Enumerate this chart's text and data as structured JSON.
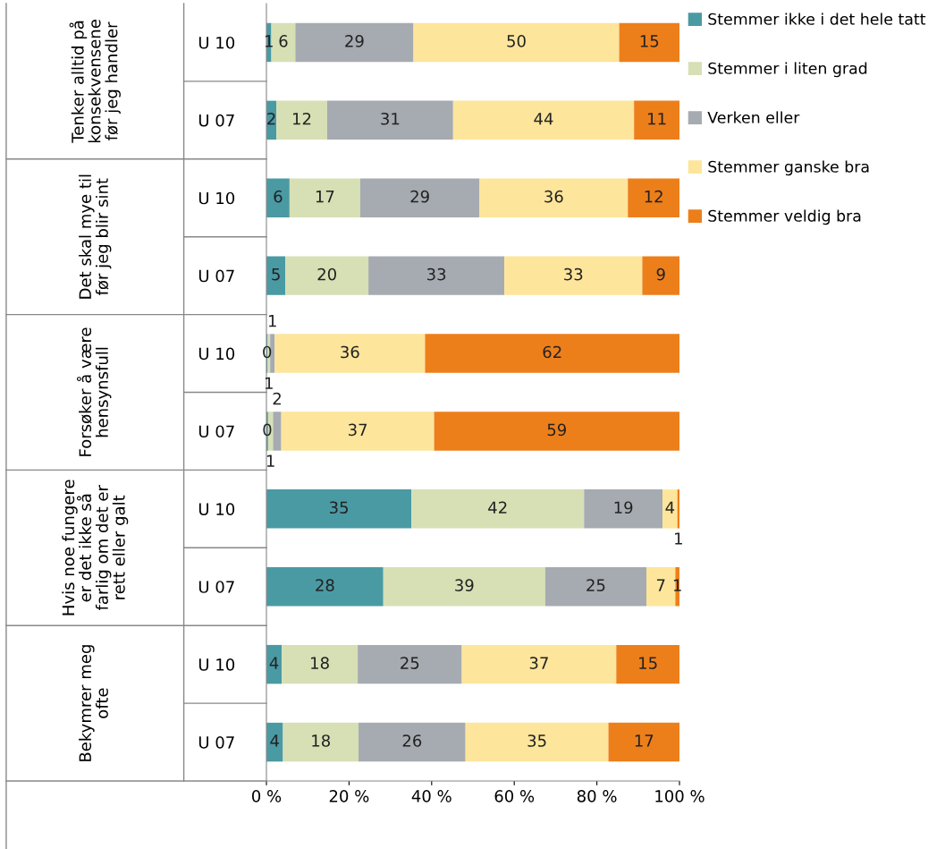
{
  "chart_data": {
    "type": "bar",
    "orientation": "horizontal",
    "stacked": true,
    "categories": [
      "U 10",
      "U 07",
      "U 10",
      "U 07",
      "U 10",
      "U 07",
      "U 10",
      "U 07",
      "U 10",
      "U 07"
    ],
    "series": [
      {
        "name": "Stemmer ikke i det hele tatt",
        "color": "#4a9aa4",
        "values": [
          1.2,
          2.4,
          5.6,
          4.6,
          0.3,
          0.4,
          35.1,
          28.3,
          3.7,
          4.0
        ],
        "value_labels": [
          "1",
          "2",
          "6",
          "5",
          "0",
          "0",
          "35",
          "28",
          "4",
          "4"
        ]
      },
      {
        "name": "Stemmer i liten grad",
        "color": "#d7dfb5",
        "values": [
          5.8,
          12.3,
          17.1,
          20.1,
          0.6,
          1.2,
          41.8,
          39.2,
          18.4,
          18.3
        ],
        "value_labels": [
          "6",
          "12",
          "17",
          "20",
          "1",
          "1",
          "42",
          "39",
          "18",
          "18"
        ]
      },
      {
        "name": "Verken eller",
        "color": "#a6abb1",
        "values": [
          28.6,
          30.5,
          28.9,
          32.9,
          1.1,
          2.0,
          19.0,
          24.5,
          25.2,
          25.9
        ],
        "value_labels": [
          "29",
          "31",
          "29",
          "33",
          "1",
          "2",
          "19",
          "25",
          "25",
          "26"
        ]
      },
      {
        "name": "Stemmer ganske bra",
        "color": "#fde59b",
        "values": [
          49.8,
          43.8,
          35.9,
          33.4,
          36.4,
          37.0,
          3.6,
          7.0,
          37.4,
          34.6
        ],
        "value_labels": [
          "50",
          "44",
          "36",
          "33",
          "36",
          "37",
          "4",
          "7",
          "37",
          "35"
        ]
      },
      {
        "name": "Stemmer veldig bra",
        "color": "#ed7f1b",
        "values": [
          14.6,
          11.0,
          12.5,
          9.0,
          61.6,
          59.4,
          0.5,
          1.0,
          15.3,
          17.2
        ],
        "value_labels": [
          "15",
          "11",
          "12",
          "9",
          "62",
          "59",
          "1",
          "1",
          "15",
          "17"
        ]
      }
    ],
    "annotations": [
      "Tenker alltid på konsekvensene før jeg handler",
      "Det skal mye til før jeg blir sint",
      "Forsøker å være hensynsfull",
      "Hvis noe fungere er det ikke så farlig om det er rett eller galt",
      "Bekymrer meg ofte"
    ],
    "xlim": [
      0,
      100
    ],
    "xticks": [
      {
        "value": 0,
        "label": "0 %"
      },
      {
        "value": 20,
        "label": "20 %"
      },
      {
        "value": 40,
        "label": "40 %"
      },
      {
        "value": 60,
        "label": "60 %"
      },
      {
        "value": 80,
        "label": "80 %"
      },
      {
        "value": 100,
        "label": "100 %"
      }
    ],
    "grid": false,
    "legend": "right"
  }
}
